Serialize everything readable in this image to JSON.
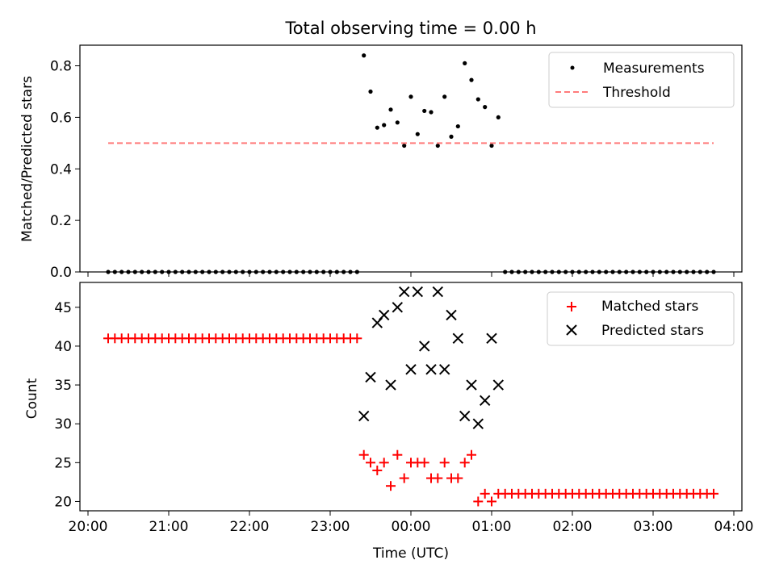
{
  "chart_data": [
    {
      "type": "scatter",
      "title": "Total observing time = 0.00 h",
      "xlabel": "",
      "ylabel": "Matched/Predicted stars",
      "ylim": [
        0,
        0.88
      ],
      "yticks": [
        "0.0",
        "0.2",
        "0.4",
        "0.6",
        "0.8"
      ],
      "grid": false,
      "legend": {
        "position": "top-right",
        "entries": [
          "Measurements",
          "Threshold"
        ]
      },
      "x_unit": "hours since 00:00 UTC",
      "series": [
        {
          "name": "Measurements",
          "marker": "dot",
          "color": "#000000",
          "points": [
            [
              -3.75,
              0
            ],
            [
              -3.667,
              0
            ],
            [
              -3.583,
              0
            ],
            [
              -3.5,
              0
            ],
            [
              -3.417,
              0
            ],
            [
              -3.333,
              0
            ],
            [
              -3.25,
              0
            ],
            [
              -3.167,
              0
            ],
            [
              -3.083,
              0
            ],
            [
              -3.0,
              0
            ],
            [
              -2.917,
              0
            ],
            [
              -2.833,
              0
            ],
            [
              -2.75,
              0
            ],
            [
              -2.667,
              0
            ],
            [
              -2.583,
              0
            ],
            [
              -2.5,
              0
            ],
            [
              -2.417,
              0
            ],
            [
              -2.333,
              0
            ],
            [
              -2.25,
              0
            ],
            [
              -2.167,
              0
            ],
            [
              -2.083,
              0
            ],
            [
              -2.0,
              0
            ],
            [
              -1.917,
              0
            ],
            [
              -1.833,
              0
            ],
            [
              -1.75,
              0
            ],
            [
              -1.667,
              0
            ],
            [
              -1.583,
              0
            ],
            [
              -1.5,
              0
            ],
            [
              -1.417,
              0
            ],
            [
              -1.333,
              0
            ],
            [
              -1.25,
              0
            ],
            [
              -1.167,
              0
            ],
            [
              -1.083,
              0
            ],
            [
              -1.0,
              0
            ],
            [
              -0.917,
              0
            ],
            [
              -0.833,
              0
            ],
            [
              -0.75,
              0
            ],
            [
              -0.667,
              0
            ],
            [
              -0.583,
              0.84
            ],
            [
              -0.5,
              0.7
            ],
            [
              -0.417,
              0.56
            ],
            [
              -0.333,
              0.57
            ],
            [
              -0.25,
              0.63
            ],
            [
              -0.167,
              0.58
            ],
            [
              -0.083,
              0.49
            ],
            [
              0.0,
              0.68
            ],
            [
              0.083,
              0.535
            ],
            [
              0.167,
              0.625
            ],
            [
              0.25,
              0.62
            ],
            [
              0.333,
              0.49
            ],
            [
              0.417,
              0.68
            ],
            [
              0.5,
              0.525
            ],
            [
              0.583,
              0.565
            ],
            [
              0.667,
              0.81
            ],
            [
              0.75,
              0.745
            ],
            [
              0.833,
              0.67
            ],
            [
              0.917,
              0.64
            ],
            [
              1.0,
              0.49
            ],
            [
              1.083,
              0.6
            ],
            [
              1.167,
              0
            ],
            [
              1.25,
              0
            ],
            [
              1.333,
              0
            ],
            [
              1.417,
              0
            ],
            [
              1.5,
              0
            ],
            [
              1.583,
              0
            ],
            [
              1.667,
              0
            ],
            [
              1.75,
              0
            ],
            [
              1.833,
              0
            ],
            [
              1.917,
              0
            ],
            [
              2.0,
              0
            ],
            [
              2.083,
              0
            ],
            [
              2.167,
              0
            ],
            [
              2.25,
              0
            ],
            [
              2.333,
              0
            ],
            [
              2.417,
              0
            ],
            [
              2.5,
              0
            ],
            [
              2.583,
              0
            ],
            [
              2.667,
              0
            ],
            [
              2.75,
              0
            ],
            [
              2.833,
              0
            ],
            [
              2.917,
              0
            ],
            [
              3.0,
              0
            ],
            [
              3.083,
              0
            ],
            [
              3.167,
              0
            ],
            [
              3.25,
              0
            ],
            [
              3.333,
              0
            ],
            [
              3.417,
              0
            ],
            [
              3.5,
              0
            ],
            [
              3.583,
              0
            ],
            [
              3.667,
              0
            ],
            [
              3.75,
              0
            ]
          ]
        },
        {
          "name": "Threshold",
          "kind": "dashed-line",
          "color": "#ff7b7b",
          "points": [
            [
              -3.75,
              0.5
            ],
            [
              3.75,
              0.5
            ]
          ]
        }
      ]
    },
    {
      "type": "scatter",
      "title": "",
      "xlabel": "Time (UTC)",
      "ylabel": "Count",
      "ylim": [
        18.8,
        48.2
      ],
      "yticks": [
        "20",
        "25",
        "30",
        "35",
        "40",
        "45"
      ],
      "xticks": [
        "20:00",
        "21:00",
        "22:00",
        "23:00",
        "00:00",
        "01:00",
        "02:00",
        "03:00",
        "04:00"
      ],
      "xlim": [
        -4.1,
        4.1
      ],
      "grid": false,
      "legend": {
        "position": "top-right",
        "entries": [
          "Matched stars",
          "Predicted stars"
        ]
      },
      "x_unit": "hours since 00:00 UTC",
      "series": [
        {
          "name": "Matched stars",
          "marker": "plus",
          "color": "#ff0000",
          "points": [
            [
              -3.75,
              41
            ],
            [
              -3.667,
              41
            ],
            [
              -3.583,
              41
            ],
            [
              -3.5,
              41
            ],
            [
              -3.417,
              41
            ],
            [
              -3.333,
              41
            ],
            [
              -3.25,
              41
            ],
            [
              -3.167,
              41
            ],
            [
              -3.083,
              41
            ],
            [
              -3.0,
              41
            ],
            [
              -2.917,
              41
            ],
            [
              -2.833,
              41
            ],
            [
              -2.75,
              41
            ],
            [
              -2.667,
              41
            ],
            [
              -2.583,
              41
            ],
            [
              -2.5,
              41
            ],
            [
              -2.417,
              41
            ],
            [
              -2.333,
              41
            ],
            [
              -2.25,
              41
            ],
            [
              -2.167,
              41
            ],
            [
              -2.083,
              41
            ],
            [
              -2.0,
              41
            ],
            [
              -1.917,
              41
            ],
            [
              -1.833,
              41
            ],
            [
              -1.75,
              41
            ],
            [
              -1.667,
              41
            ],
            [
              -1.583,
              41
            ],
            [
              -1.5,
              41
            ],
            [
              -1.417,
              41
            ],
            [
              -1.333,
              41
            ],
            [
              -1.25,
              41
            ],
            [
              -1.167,
              41
            ],
            [
              -1.083,
              41
            ],
            [
              -1.0,
              41
            ],
            [
              -0.917,
              41
            ],
            [
              -0.833,
              41
            ],
            [
              -0.75,
              41
            ],
            [
              -0.667,
              41
            ],
            [
              -0.583,
              26
            ],
            [
              -0.5,
              25
            ],
            [
              -0.417,
              24
            ],
            [
              -0.333,
              25
            ],
            [
              -0.25,
              22
            ],
            [
              -0.167,
              26
            ],
            [
              -0.083,
              23
            ],
            [
              0.0,
              25
            ],
            [
              0.083,
              25
            ],
            [
              0.167,
              25
            ],
            [
              0.25,
              23
            ],
            [
              0.333,
              23
            ],
            [
              0.417,
              25
            ],
            [
              0.5,
              23
            ],
            [
              0.583,
              23
            ],
            [
              0.667,
              25
            ],
            [
              0.75,
              26
            ],
            [
              0.833,
              20
            ],
            [
              0.917,
              21
            ],
            [
              1.0,
              20
            ],
            [
              1.083,
              21
            ],
            [
              1.167,
              21
            ],
            [
              1.25,
              21
            ],
            [
              1.333,
              21
            ],
            [
              1.417,
              21
            ],
            [
              1.5,
              21
            ],
            [
              1.583,
              21
            ],
            [
              1.667,
              21
            ],
            [
              1.75,
              21
            ],
            [
              1.833,
              21
            ],
            [
              1.917,
              21
            ],
            [
              2.0,
              21
            ],
            [
              2.083,
              21
            ],
            [
              2.167,
              21
            ],
            [
              2.25,
              21
            ],
            [
              2.333,
              21
            ],
            [
              2.417,
              21
            ],
            [
              2.5,
              21
            ],
            [
              2.583,
              21
            ],
            [
              2.667,
              21
            ],
            [
              2.75,
              21
            ],
            [
              2.833,
              21
            ],
            [
              2.917,
              21
            ],
            [
              3.0,
              21
            ],
            [
              3.083,
              21
            ],
            [
              3.167,
              21
            ],
            [
              3.25,
              21
            ],
            [
              3.333,
              21
            ],
            [
              3.417,
              21
            ],
            [
              3.5,
              21
            ],
            [
              3.583,
              21
            ],
            [
              3.667,
              21
            ],
            [
              3.75,
              21
            ]
          ]
        },
        {
          "name": "Predicted stars",
          "marker": "x",
          "color": "#000000",
          "points": [
            [
              -0.583,
              31
            ],
            [
              -0.5,
              36
            ],
            [
              -0.417,
              43
            ],
            [
              -0.333,
              44
            ],
            [
              -0.25,
              35
            ],
            [
              -0.167,
              45
            ],
            [
              -0.083,
              47
            ],
            [
              0.0,
              37
            ],
            [
              0.083,
              47
            ],
            [
              0.167,
              40
            ],
            [
              0.25,
              37
            ],
            [
              0.333,
              47
            ],
            [
              0.417,
              37
            ],
            [
              0.5,
              44
            ],
            [
              0.583,
              41
            ],
            [
              0.667,
              31
            ],
            [
              0.75,
              35
            ],
            [
              0.833,
              30
            ],
            [
              0.917,
              33
            ],
            [
              1.0,
              41
            ],
            [
              1.083,
              35
            ]
          ]
        }
      ]
    }
  ]
}
